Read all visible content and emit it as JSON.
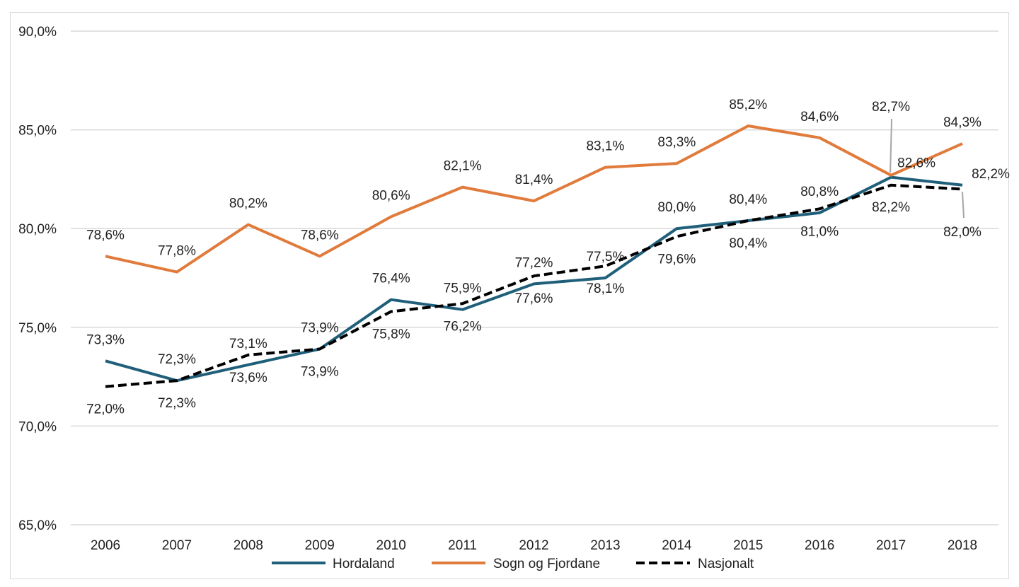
{
  "chart_data": {
    "type": "line",
    "title": "",
    "xlabel": "",
    "ylabel": "",
    "categories": [
      "2006",
      "2007",
      "2008",
      "2009",
      "2010",
      "2011",
      "2012",
      "2013",
      "2014",
      "2015",
      "2016",
      "2017",
      "2018"
    ],
    "ylim": [
      65,
      90
    ],
    "yticks": [
      65,
      70,
      75,
      80,
      85,
      90
    ],
    "ytick_labels": [
      "65,0%",
      "70,0%",
      "75,0%",
      "80,0%",
      "85,0%",
      "90,0%"
    ],
    "grid": true,
    "legend": "bottom",
    "series": [
      {
        "name": "Hordaland",
        "color": "#1f5f7a",
        "dash": "solid",
        "values": [
          73.3,
          72.3,
          73.1,
          73.9,
          76.4,
          75.9,
          77.2,
          77.5,
          80.0,
          80.4,
          80.8,
          82.6,
          82.2
        ],
        "labels": [
          "73,3%",
          "72,3%",
          "73,1%",
          "73,9%",
          "76,4%",
          "75,9%",
          "77,2%",
          "77,5%",
          "80,0%",
          "80,4%",
          "80,8%",
          "82,6%",
          "82,2%"
        ]
      },
      {
        "name": "Sogn og Fjordane",
        "color": "#e07b3c",
        "dash": "solid",
        "values": [
          78.6,
          77.8,
          80.2,
          78.6,
          80.6,
          82.1,
          81.4,
          83.1,
          83.3,
          85.2,
          84.6,
          82.7,
          84.3
        ],
        "labels": [
          "78,6%",
          "77,8%",
          "80,2%",
          "78,6%",
          "80,6%",
          "82,1%",
          "81,4%",
          "83,1%",
          "83,3%",
          "85,2%",
          "84,6%",
          "82,7%",
          "84,3%"
        ]
      },
      {
        "name": "Nasjonalt",
        "color": "#000000",
        "dash": "dashed",
        "values": [
          72.0,
          72.3,
          73.6,
          73.9,
          75.8,
          76.2,
          77.6,
          78.1,
          79.6,
          80.4,
          81.0,
          82.2,
          82.0
        ],
        "labels": [
          "72,0%",
          "72,3%",
          "73,6%",
          "73,9%",
          "75,8%",
          "76,2%",
          "77,6%",
          "78,1%",
          "79,6%",
          "80,4%",
          "81,0%",
          "82,2%",
          "82,0%"
        ]
      }
    ]
  }
}
